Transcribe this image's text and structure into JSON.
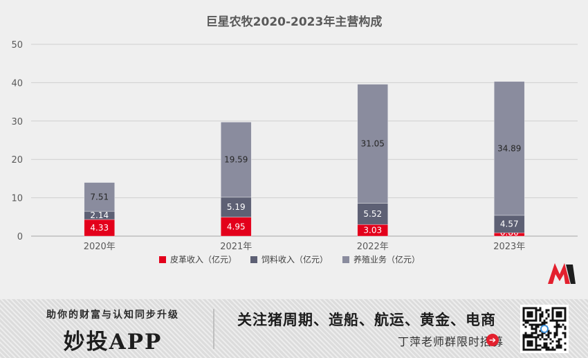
{
  "chart_data": {
    "type": "bar",
    "stacked": true,
    "title": "巨星农牧2020-2023年主营构成",
    "categories": [
      "2020年",
      "2021年",
      "2022年",
      "2023年"
    ],
    "series": [
      {
        "name": "皮革收入（亿元）",
        "color": "#e3001b",
        "label_color": "#ffffff",
        "values": [
          4.33,
          4.95,
          3.03,
          0.86
        ]
      },
      {
        "name": "饲料收入（亿元）",
        "color": "#5d6074",
        "label_color": "#ffffff",
        "values": [
          2.14,
          5.19,
          5.52,
          4.57
        ]
      },
      {
        "name": "养殖业务（亿元）",
        "color": "#8a8c9e",
        "label_color": "#262626",
        "values": [
          7.51,
          19.59,
          31.05,
          34.89
        ]
      }
    ],
    "value_labels": [
      [
        "4.33",
        "4.95",
        "3.03",
        "0.86"
      ],
      [
        "2.14",
        "5.19",
        "5.52",
        "4.57"
      ],
      [
        "7.51",
        "19.59",
        "31.05",
        "34.89"
      ]
    ],
    "yticks": [
      "0",
      "10",
      "20",
      "30",
      "40",
      "50"
    ],
    "ylim": [
      0,
      50
    ],
    "grid": true,
    "legend_position": "bottom"
  },
  "banner": {
    "slogan": "助你的财富与认知同步升级",
    "app_name": "妙投APP",
    "topics": "关注猪周期、造船、航运、黄金、电商",
    "cta": "丁萍老师群限时招募",
    "cta_icon": "➔",
    "accent_color": "#e3202e"
  }
}
